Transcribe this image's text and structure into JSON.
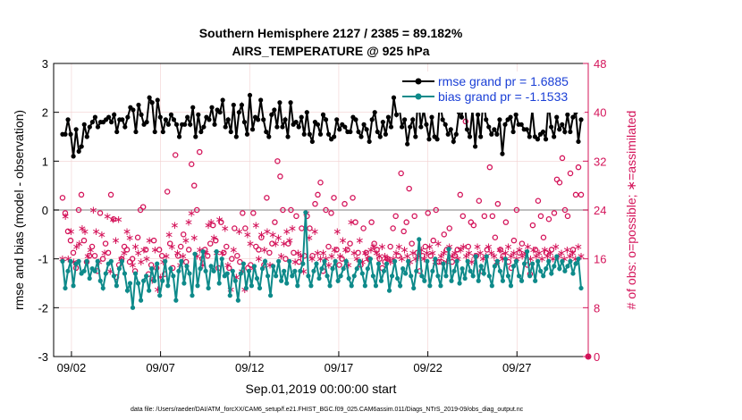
{
  "chart_data": {
    "type": "line",
    "title_line1": "Southern Hemisphere 2127 / 2385 = 89.182%",
    "title_line2": "AIRS_TEMPERATURE @ 925 hPa",
    "xlabel": "Sep.01,2019 00:00:00 start",
    "ylabel_left": "rmse and bias (model - observation)",
    "ylabel_right": "# of obs: o=possible; ∗=assimilated",
    "footer": "data file: /Users/raeder/DAI/ATM_forcXX/CAM6_setup/f.e21.FHIST_BGC.f09_025.CAM6assim.011/Diags_NTrS_2019-09/obs_diag_output.nc",
    "x_ticks": [
      {
        "day": 2,
        "label": "09/02"
      },
      {
        "day": 7,
        "label": "09/07"
      },
      {
        "day": 12,
        "label": "09/12"
      },
      {
        "day": 17,
        "label": "09/17"
      },
      {
        "day": 22,
        "label": "09/22"
      },
      {
        "day": 27,
        "label": "09/27"
      }
    ],
    "xlim": [
      1.0,
      31.0
    ],
    "ylim_left": [
      -3,
      3
    ],
    "yticks_left": [
      "3",
      "2",
      "1",
      "0",
      "-1",
      "-2",
      "-3"
    ],
    "ylim_right": [
      0,
      48
    ],
    "yticks_right": [
      "48",
      "40",
      "32",
      "24",
      "16",
      "8",
      "0"
    ],
    "zero_line": 0,
    "colors": {
      "rmse": "#000000",
      "bias": "#0e8a8a",
      "obs": "#d4145a",
      "zero": "#aaaaaa",
      "grid": "#f2d0d0"
    },
    "series": [
      {
        "name": "rmse grand pr = 1.6885",
        "color": "#000000",
        "values": [
          1.55,
          1.55,
          1.85,
          1.55,
          1.1,
          1.65,
          1.2,
          1.3,
          1.75,
          1.5,
          1.7,
          1.8,
          1.9,
          1.7,
          1.8,
          1.8,
          1.85,
          1.9,
          1.8,
          1.95,
          1.6,
          1.85,
          1.85,
          1.7,
          1.9,
          2.1,
          2.05,
          1.6,
          2.15,
          1.95,
          1.75,
          1.8,
          2.3,
          2.2,
          1.6,
          2.25,
          1.9,
          1.6,
          1.85,
          1.75,
          1.95,
          1.85,
          1.75,
          1.5,
          1.75,
          1.75,
          1.9,
          1.75,
          2.1,
          1.5,
          1.95,
          1.6,
          1.7,
          1.9,
          1.85,
          2.1,
          1.75,
          2.05,
          2.0,
          2.25,
          1.7,
          1.85,
          1.6,
          2.15,
          1.5,
          2.0,
          2.15,
          1.8,
          1.55,
          2.35,
          1.65,
          1.9,
          1.85,
          2.25,
          1.85,
          1.6,
          1.5,
          1.95,
          2.05,
          1.7,
          2.2,
          1.7,
          1.85,
          1.5,
          2.2,
          1.75,
          1.8,
          1.7,
          1.9,
          1.55,
          2.0,
          1.55,
          1.4,
          1.8,
          1.75,
          1.55,
          1.95,
          1.85,
          1.55,
          1.45,
          1.5,
          1.85,
          1.65,
          1.75,
          1.7,
          1.6,
          1.6,
          1.9,
          1.85,
          1.6,
          1.5,
          1.75,
          1.65,
          1.4,
          1.85,
          2.0,
          1.6,
          1.5,
          1.8,
          1.55,
          1.9,
          1.7,
          2.3,
          1.95,
          2.1,
          1.7,
          1.85,
          1.35,
          1.7,
          1.85,
          1.5,
          2.35,
          1.7,
          2.05,
          1.75,
          1.45,
          1.9,
          1.5,
          1.45,
          2.25,
          1.85,
          1.75,
          1.55,
          1.65,
          1.4,
          1.55,
          2.0,
          1.9,
          2.3,
          1.65,
          1.5,
          2.05,
          1.3,
          1.95,
          1.5,
          2.3,
          1.85,
          1.7,
          1.55,
          1.65,
          1.55,
          1.85,
          1.15,
          1.75,
          1.85,
          1.9,
          1.6,
          1.95,
          1.75,
          1.75,
          1.65,
          1.65,
          1.5,
          2.05,
          1.5,
          1.45,
          1.55,
          1.6,
          1.45,
          2.2,
          1.7,
          1.5,
          1.9,
          1.65,
          1.75,
          1.6,
          1.95,
          1.6,
          1.9,
          2.0,
          1.4,
          1.85
        ]
      },
      {
        "name": "bias grand pr = -1.1533",
        "color": "#0e8a8a",
        "values": [
          -1.05,
          -1.6,
          -1.25,
          -1.05,
          -1.55,
          -1.1,
          -1.05,
          -1.3,
          -1.25,
          -1.05,
          -1.4,
          -1.2,
          -1.25,
          -1.05,
          -1.45,
          -1.6,
          -1.3,
          -1.1,
          -1.05,
          -1.35,
          -1.55,
          -1.2,
          -1.05,
          -1.3,
          -1.65,
          -1.5,
          -2.0,
          -1.3,
          -1.5,
          -1.85,
          -1.45,
          -1.35,
          -1.65,
          -1.2,
          -1.45,
          -1.1,
          -1.75,
          -1.45,
          -1.05,
          -1.55,
          -1.2,
          -1.35,
          -1.85,
          -1.25,
          -1.05,
          -1.5,
          -1.15,
          -1.3,
          -1.75,
          -0.9,
          -1.55,
          -1.2,
          -0.85,
          -1.25,
          -1.6,
          -1.15,
          -1.25,
          -0.85,
          -1.5,
          -1.0,
          -1.35,
          -1.3,
          -1.75,
          -1.25,
          -1.45,
          -1.85,
          -1.3,
          -1.1,
          -1.6,
          -1.25,
          -1.55,
          -1.15,
          -1.4,
          -1.6,
          -1.2,
          -1.05,
          -1.35,
          -1.75,
          -1.15,
          -1.35,
          -1.05,
          -1.45,
          -1.25,
          -1.5,
          -1.05,
          -1.35,
          -1.25,
          -1.55,
          -1.25,
          -1.1,
          -0.05,
          -1.35,
          -1.55,
          -1.25,
          -1.1,
          -1.4,
          -1.2,
          -1.05,
          -1.35,
          -1.55,
          -1.2,
          -1.05,
          -1.45,
          -1.35,
          -1.2,
          -1.05,
          -1.4,
          -1.55,
          -1.35,
          -1.2,
          -1.05,
          -1.3,
          -1.55,
          -1.2,
          -1.0,
          -1.35,
          -1.55,
          -1.1,
          -1.45,
          -1.25,
          -1.1,
          -1.65,
          -1.35,
          -1.05,
          -1.4,
          -1.55,
          -1.2,
          -1.3,
          -1.05,
          -1.35,
          -1.6,
          -1.25,
          -0.6,
          -1.35,
          -1.45,
          -1.05,
          -1.55,
          -1.25,
          -1.0,
          -1.35,
          -1.55,
          -1.1,
          -1.35,
          -0.8,
          -1.45,
          -1.25,
          -1.05,
          -1.5,
          -1.2,
          -1.4,
          -1.05,
          -1.25,
          -1.35,
          -0.95,
          -1.45,
          -1.15,
          -1.3,
          -0.95,
          -1.35,
          -1.55,
          -1.15,
          -1.05,
          -1.25,
          -1.45,
          -1.0,
          -1.35,
          -1.55,
          -1.15,
          -1.05,
          -1.35,
          -1.45,
          -1.1,
          -0.85,
          -1.35,
          -1.1,
          -1.45,
          -1.05,
          -1.25,
          -1.35,
          -1.2,
          -1.05,
          -1.3,
          -1.15,
          -0.95,
          -1.2,
          -1.05,
          -1.25,
          -1.15,
          -1.05,
          -1.3,
          -1.1,
          -1.0,
          -1.6
        ]
      },
      {
        "name": "obs possible",
        "color": "#d4145a",
        "axis": "right",
        "marker": "o",
        "values": [
          26.0,
          23.5,
          20.5,
          19.0,
          17.0,
          14.5,
          24.0,
          26.5,
          19.0,
          15.5,
          16.5,
          18.0,
          16.5,
          14.0,
          23.5,
          16.0,
          18.5,
          17.0,
          26.5,
          22.5,
          13.0,
          15.0,
          16.0,
          18.0,
          17.5,
          15.5,
          16.0,
          14.0,
          19.5,
          24.0,
          24.5,
          17.5,
          13.5,
          15.0,
          19.0,
          14.5,
          17.5,
          16.5,
          13.5,
          27.0,
          18.5,
          14.5,
          33.0,
          16.5,
          18.0,
          20.0,
          15.5,
          17.5,
          31.5,
          28.0,
          24.0,
          33.5,
          16.0,
          17.5,
          16.5,
          18.5,
          21.5,
          19.0,
          14.5,
          22.0,
          17.0,
          18.0,
          14.5,
          16.0,
          21.0,
          16.5,
          15.5,
          23.5,
          21.0,
          14.5,
          15.0,
          23.5,
          18.0,
          17.5,
          19.5,
          15.0,
          26.0,
          17.0,
          18.5,
          22.0,
          32.0,
          29.5,
          24.0,
          16.0,
          18.5,
          24.0,
          17.0,
          23.0,
          15.5,
          21.0,
          16.5,
          23.0,
          21.0,
          16.5,
          25.0,
          26.5,
          28.5,
          14.0,
          24.0,
          18.0,
          23.5,
          26.0,
          17.5,
          15.0,
          16.0,
          25.0,
          17.5,
          18.5,
          26.0,
          22.0,
          17.0,
          15.0,
          21.0,
          17.0,
          16.0,
          22.0,
          18.5,
          17.5,
          16.0,
          14.5,
          15.5,
          16.0,
          18.0,
          21.0,
          23.0,
          16.5,
          30.0,
          20.5,
          22.0,
          27.5,
          18.5,
          23.0,
          17.0,
          14.0,
          16.5,
          18.0,
          23.5,
          16.5,
          19.0,
          24.0,
          15.5,
          15.5,
          20.0,
          17.5,
          21.0,
          15.5,
          16.5,
          17.5,
          26.5,
          23.0,
          38.5,
          18.0,
          22.0,
          21.5,
          16.5,
          25.5,
          14.0,
          23.0,
          17.5,
          31.0,
          23.0,
          19.5,
          25.0,
          17.5,
          16.5,
          22.0,
          15.5,
          14.5,
          19.0,
          24.0,
          17.0,
          18.5,
          40.5,
          15.0,
          13.5,
          21.5,
          17.5,
          25.5,
          23.0,
          19.5,
          17.0,
          22.5,
          17.5,
          23.5,
          29.0,
          28.5,
          32.5,
          24.0,
          23.0,
          30.0,
          17.5,
          26.5,
          31.0,
          26.5
        ]
      },
      {
        "name": "obs assimilated",
        "color": "#d4145a",
        "axis": "right",
        "marker": "*",
        "values": [
          16.0,
          23.0,
          16.0,
          20.5,
          15.5,
          18.0,
          18.5,
          21.0,
          20.5,
          16.5,
          17.5,
          24.0,
          20.5,
          15.5,
          20.0,
          17.0,
          23.0,
          14.0,
          22.5,
          19.0,
          22.5,
          16.0,
          17.0,
          20.5,
          19.5,
          15.0,
          18.0,
          17.0,
          15.5,
          17.5,
          16.0,
          19.0,
          12.5,
          17.5,
          11.0,
          13.0,
          15.5,
          16.5,
          20.0,
          18.0,
          21.5,
          17.0,
          15.0,
          16.5,
          19.0,
          22.0,
          23.5,
          19.5,
          16.5,
          17.5,
          15.0,
          17.0,
          21.5,
          22.0,
          19.5,
          17.0,
          22.5,
          17.0,
          21.0,
          15.0,
          11.0,
          17.5,
          13.0,
          20.5,
          14.0,
          11.0,
          20.0,
          18.5,
          14.5,
          21.5,
          16.0,
          20.0,
          17.5,
          20.5,
          15.0,
          20.0,
          18.5,
          19.5,
          16.5,
          18.5,
          20.5,
          19.0,
          21.0,
          15.5,
          17.0,
          16.5,
          14.0,
          23.5,
          19.5,
          16.0,
          20.5,
          17.0,
          16.0,
          17.0,
          16.0,
          15.0,
          16.5,
          17.5,
          20.5,
          16.5,
          19.0,
          17.5,
          15.0,
          22.0,
          17.0,
          16.0,
          19.0,
          15.5,
          17.0,
          16.0,
          17.5,
          18.0,
          17.0,
          16.5,
          18.0,
          16.5,
          16.0,
          15.5,
          16.0,
          17.0,
          18.0,
          16.0,
          17.5,
          16.5,
          15.5,
          17.0,
          16.0,
          16.5,
          17.5,
          16.0,
          17.0,
          18.0,
          17.0,
          15.5,
          18.5,
          16.5,
          17.0,
          15.5,
          18.0,
          16.5,
          17.0,
          16.0,
          17.5,
          18.0,
          16.5,
          17.0,
          15.5,
          16.5,
          18.0,
          17.0,
          16.0,
          16.5,
          18.0,
          17.0,
          16.5,
          15.5,
          17.5,
          16.0,
          17.0,
          18.0,
          16.5,
          17.0,
          16.0,
          17.5,
          16.5,
          17.0,
          18.0,
          16.0,
          17.5,
          16.5,
          17.0,
          16.0,
          17.5,
          16.5,
          17.0,
          16.0,
          18.0,
          16.5,
          17.0,
          16.0,
          17.5,
          16.5,
          17.0,
          16.0,
          18.0,
          16.5
        ]
      }
    ],
    "legend": [
      {
        "label": "rmse grand pr = 1.6885",
        "color": "#000000"
      },
      {
        "label": "bias grand pr = -1.1533",
        "color": "#0e8a8a"
      }
    ]
  }
}
